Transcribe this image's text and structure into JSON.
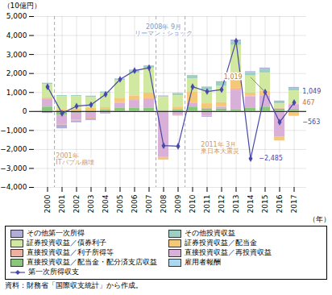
{
  "chart_data": {
    "type": "bar",
    "stacked": true,
    "grid": true,
    "legend": "bottom",
    "caption": "資料：財務省「国際収支統計」から作成。",
    "xlabel": "（年）",
    "ylabel": "（10億円）",
    "categories": [
      "2000",
      "2001",
      "2002",
      "2003",
      "2004",
      "2005",
      "2006",
      "2007",
      "2008",
      "2009",
      "2010",
      "2011",
      "2012",
      "2013",
      "2014",
      "2015",
      "2016",
      "2017"
    ],
    "series": [
      {
        "name": "その他第一次所得",
        "color": "#b0aed8",
        "values": [
          -100,
          -200,
          -80,
          -80,
          -30,
          -30,
          30,
          30,
          30,
          30,
          30,
          -50,
          50,
          100,
          50,
          80,
          50,
          50
        ]
      },
      {
        "name": "その他投資収益",
        "color": "#9ecfc5",
        "values": [
          80,
          60,
          60,
          80,
          80,
          100,
          130,
          100,
          50,
          90,
          160,
          180,
          200,
          180,
          180,
          190,
          100,
          130
        ]
      },
      {
        "name": "証券投資収益／債券利子",
        "color": "#d0e8a0",
        "values": [
          700,
          700,
          650,
          550,
          750,
          950,
          1200,
          1300,
          700,
          600,
          700,
          700,
          850,
          1400,
          900,
          950,
          250,
          700
        ]
      },
      {
        "name": "証券投資収益／配当金",
        "color": "#f5c878",
        "values": [
          50,
          50,
          100,
          150,
          100,
          200,
          200,
          300,
          -100,
          150,
          550,
          250,
          200,
          900,
          150,
          200,
          -200,
          -250
        ]
      },
      {
        "name": "直接投資収益／利子所得等",
        "color": "#f0b0a0",
        "values": [
          30,
          -60,
          -60,
          -40,
          20,
          40,
          40,
          40,
          -60,
          -40,
          30,
          30,
          40,
          50,
          40,
          40,
          30,
          30
        ]
      },
      {
        "name": "直接投資収益／再投資収益",
        "color": "#d8b0d8",
        "values": [
          400,
          -450,
          -350,
          -300,
          -100,
          250,
          400,
          450,
          -2400,
          -200,
          200,
          -250,
          100,
          1050,
          600,
          600,
          -1350,
          250
        ]
      },
      {
        "name": "直接投資収益／配当金・配分済支店収益",
        "color": "#88c878",
        "values": [
          200,
          -200,
          -100,
          -50,
          50,
          150,
          150,
          150,
          10,
          50,
          200,
          100,
          100,
          50,
          150,
          200,
          90,
          80
        ]
      },
      {
        "name": "雇用者報酬",
        "color": "#aad8f0",
        "values": [
          30,
          30,
          30,
          30,
          30,
          30,
          30,
          30,
          30,
          30,
          30,
          30,
          30,
          30,
          30,
          30,
          30,
          30
        ]
      },
      {
        "name": "第一次所得収支",
        "type": "line",
        "color": "#4848aa",
        "marker": "diamond",
        "values": [
          1300,
          -100,
          280,
          350,
          900,
          1690,
          2150,
          2300,
          -1800,
          -1830,
          1300,
          1050,
          1150,
          3700,
          -2485,
          1019,
          -563,
          467
        ]
      }
    ],
    "ylim": [
      -4000,
      5000
    ],
    "yticks": [
      {
        "value": -4000,
        "label": "−4,000"
      },
      {
        "value": -3000,
        "label": "−3,000"
      },
      {
        "value": -2000,
        "label": "−2,000"
      },
      {
        "value": -1000,
        "label": "−1,000"
      },
      0,
      {
        "value": 1000,
        "label": "1,000"
      },
      {
        "value": 2000,
        "label": "2,000"
      },
      {
        "value": 3000,
        "label": "3,000"
      },
      {
        "value": 4000,
        "label": "4,000"
      },
      {
        "value": 5000,
        "label": "5,000"
      }
    ],
    "event_lines": [
      "2001",
      "2008",
      "2010"
    ],
    "annotations": [
      {
        "text": "2008年 9月\nリーマン・ショック",
        "x": "2008",
        "y": 4600,
        "color": "#7799cc",
        "anchor": "middle"
      },
      {
        "text": "2001年\nITバブル崩壊",
        "x": "2000",
        "y": -2200,
        "color": "#cc9966",
        "anchor": "start"
      },
      {
        "text": "2011年 3月\n東日本大震災",
        "x": "2010",
        "y": -1600,
        "color": "#cc9966",
        "anchor": "start"
      },
      {
        "text": "1,019",
        "x": "2014",
        "y": 1800,
        "color": "#c07830",
        "anchor": "end",
        "xy": [
          "2015",
          1019
        ]
      },
      {
        "text": "467",
        "x": "2017",
        "y": 467,
        "color": "#c07830",
        "anchor": "start"
      },
      {
        "text": "1,049",
        "x": "2017",
        "y": 1049,
        "color": "#4848aa",
        "anchor": "start"
      },
      {
        "text": "−563",
        "x": "2017",
        "y": -563,
        "color": "#4848aa",
        "anchor": "start"
      },
      {
        "text": "−2,485",
        "x": "2014",
        "y": -2485,
        "color": "#4848aa",
        "anchor": "start"
      }
    ]
  }
}
